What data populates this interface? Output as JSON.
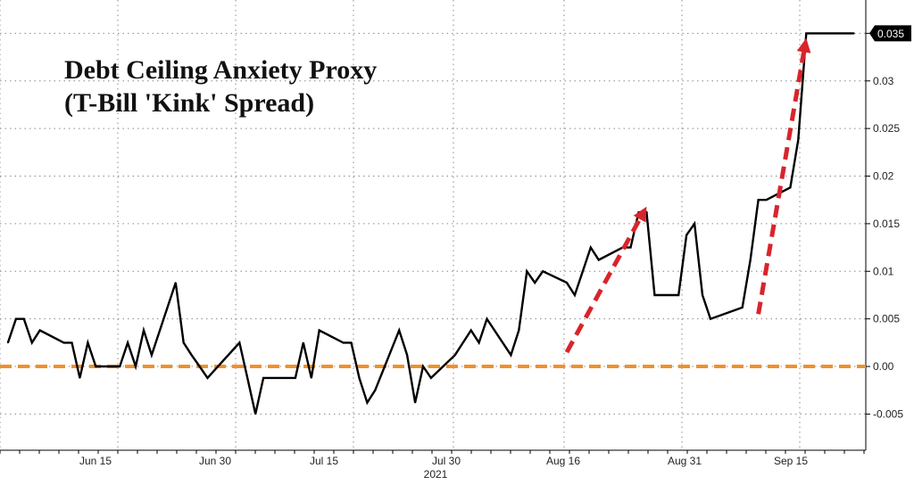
{
  "chart_data": {
    "type": "line",
    "title_lines": [
      "Debt Ceiling Anxiety Proxy",
      "(T-Bill 'Kink' Spread)"
    ],
    "xlabel": "",
    "ylabel": "",
    "x_tick_labels": [
      "Jun 15",
      "Jun 30",
      "Jul 15",
      "Jul 30",
      "Aug 16",
      "Aug 31",
      "Sep 15"
    ],
    "x_secondary_label": "2021",
    "y_ticks": [
      -0.005,
      0.0,
      0.005,
      0.01,
      0.015,
      0.02,
      0.025,
      0.03,
      0.035
    ],
    "y_tick_labels": [
      "-0.005",
      "0.00",
      "0.005",
      "0.01",
      "0.015",
      "0.02",
      "0.025",
      "0.03",
      "0.035"
    ],
    "ylim": [
      -0.0088,
      0.0385
    ],
    "last_value_label": "0.035",
    "grid": true,
    "series": [
      {
        "color": "#000000",
        "x": [
          "2021-06-07",
          "2021-06-08",
          "2021-06-09",
          "2021-06-10",
          "2021-06-11",
          "2021-06-14",
          "2021-06-15",
          "2021-06-16",
          "2021-06-17",
          "2021-06-18",
          "2021-06-21",
          "2021-06-22",
          "2021-06-23",
          "2021-06-24",
          "2021-06-25",
          "2021-06-28",
          "2021-06-29",
          "2021-06-30",
          "2021-07-01",
          "2021-07-02",
          "2021-07-06",
          "2021-07-07",
          "2021-07-08",
          "2021-07-09",
          "2021-07-12",
          "2021-07-13",
          "2021-07-14",
          "2021-07-15",
          "2021-07-16",
          "2021-07-19",
          "2021-07-20",
          "2021-07-21",
          "2021-07-22",
          "2021-07-23",
          "2021-07-26",
          "2021-07-27",
          "2021-07-28",
          "2021-07-29",
          "2021-07-30",
          "2021-08-02",
          "2021-08-03",
          "2021-08-04",
          "2021-08-05",
          "2021-08-06",
          "2021-08-09",
          "2021-08-10",
          "2021-08-11",
          "2021-08-12",
          "2021-08-13",
          "2021-08-16",
          "2021-08-17",
          "2021-08-18",
          "2021-08-19",
          "2021-08-20",
          "2021-08-23",
          "2021-08-24",
          "2021-08-25",
          "2021-08-26",
          "2021-08-27",
          "2021-08-30",
          "2021-08-31",
          "2021-09-01",
          "2021-09-02",
          "2021-09-03",
          "2021-09-07",
          "2021-09-08",
          "2021-09-09",
          "2021-09-10",
          "2021-09-13",
          "2021-09-14",
          "2021-09-15",
          "2021-09-16",
          "2021-09-17",
          "2021-09-20",
          "2021-09-21"
        ],
        "y": [
          0.0025,
          0.005,
          0.005,
          0.0025,
          0.0038,
          0.0025,
          0.0025,
          -0.0012,
          0.0025,
          0.0,
          0.0,
          0.0025,
          0.0,
          0.0038,
          0.0012,
          0.0088,
          0.0025,
          0.0012,
          0.0,
          -0.0012,
          0.0025,
          -0.0012,
          -0.005,
          -0.0012,
          -0.0012,
          -0.0012,
          0.0025,
          -0.0012,
          0.0038,
          0.0025,
          0.0025,
          -0.0012,
          -0.0038,
          -0.0025,
          0.0038,
          0.0012,
          -0.0038,
          0.0,
          -0.0012,
          0.0012,
          0.0025,
          0.0038,
          0.0025,
          0.005,
          0.0012,
          0.0038,
          0.01,
          0.0088,
          0.01,
          0.0088,
          0.0075,
          0.01,
          0.0125,
          0.0112,
          0.0125,
          0.0125,
          0.0162,
          0.0162,
          0.0075,
          0.0075,
          0.0138,
          0.015,
          0.0075,
          0.005,
          0.0062,
          0.0112,
          0.0175,
          0.0175,
          0.0188,
          0.0238,
          0.035,
          0.035,
          0.035,
          0.035,
          0.035
        ]
      }
    ],
    "reference_line": {
      "y": 0.0,
      "color": "#f0912a",
      "style": "dashed"
    },
    "annotations": [
      {
        "type": "arrow",
        "color": "#d9242b",
        "style": "dashed",
        "from": [
          "2021-08-16",
          0.0015
        ],
        "to": [
          "2021-08-26",
          0.0168
        ]
      },
      {
        "type": "arrow",
        "color": "#d9242b",
        "style": "dashed",
        "from": [
          "2021-09-09",
          0.0055
        ],
        "to": [
          "2021-09-15",
          0.0345
        ]
      }
    ]
  }
}
